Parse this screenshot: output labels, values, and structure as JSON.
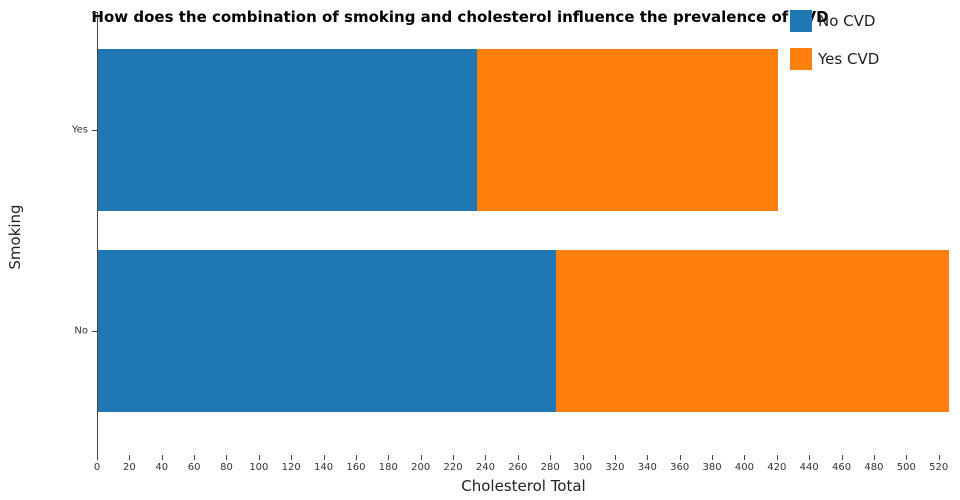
{
  "title": "How does the combination of smoking and cholesterol influence the prevalence of CVD",
  "x_axis_label": "Cholesterol Total",
  "y_axis_label": "Smoking",
  "legend": [
    {
      "label": "No CVD",
      "color": "#1f77b4"
    },
    {
      "label": "Yes CVD",
      "color": "#ff7f0e"
    }
  ],
  "chart_data": {
    "type": "bar",
    "orientation": "horizontal",
    "stacked": true,
    "title": "How does the combination of smoking and cholesterol influence the prevalence of CVD",
    "xlabel": "Cholesterol Total",
    "ylabel": "Smoking",
    "categories": [
      "Yes",
      "No"
    ],
    "series": [
      {
        "name": "No CVD",
        "color": "#1f77b4",
        "values": [
          234,
          283
        ]
      },
      {
        "name": "Yes CVD",
        "color": "#ff7f0e",
        "values": [
          186,
          243
        ]
      }
    ],
    "totals": [
      420,
      526
    ],
    "xlim": [
      0,
      527
    ],
    "xticks": [
      0,
      20,
      40,
      60,
      80,
      100,
      120,
      140,
      160,
      180,
      200,
      220,
      240,
      260,
      280,
      300,
      320,
      340,
      360,
      380,
      400,
      420,
      440,
      460,
      480,
      500,
      520
    ],
    "grid": false,
    "legend_position": "top-right"
  }
}
